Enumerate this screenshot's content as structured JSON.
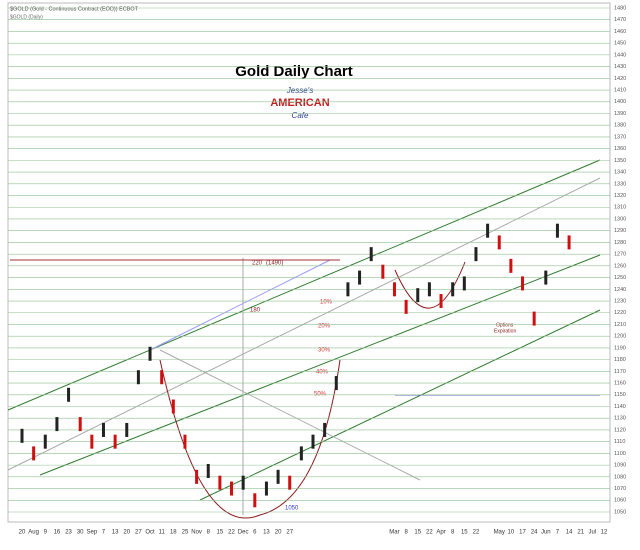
{
  "chart_data": {
    "type": "bars",
    "title": "Gold Daily Chart",
    "subtitle": "$GOLD (Gold - Continuous Contract (EOD)) ECBOT",
    "info": "$GOLD (Daily)",
    "logo": {
      "top": "Jesse's",
      "middle": "AMERICAN",
      "bottom": "Cafe"
    },
    "annotations": [
      "220",
      "(1490)",
      "180",
      "10%",
      "20%",
      "30%",
      "40%",
      "50%",
      "1050",
      "Options",
      "Expiration"
    ],
    "categories": [
      "20",
      "Aug",
      "9",
      "16",
      "23",
      "30",
      "Sep",
      "7",
      "13",
      "20",
      "27",
      "Oct",
      "11",
      "18",
      "25",
      "Nov",
      "8",
      "15",
      "22",
      "Dec",
      "6",
      "13",
      "20",
      "27",
      null,
      null,
      null,
      null,
      null,
      null,
      null,
      null,
      "Mar",
      "8",
      "15",
      "22",
      "Apr",
      "8",
      "15",
      "22",
      null,
      "May",
      "10",
      "17",
      "24",
      "Jun",
      "7",
      "14",
      "21",
      "Jul",
      "12"
    ],
    "values": [
      1115,
      1100,
      1110,
      1125,
      1150,
      1125,
      1110,
      1120,
      1110,
      1120,
      1165,
      1185,
      1165,
      1140,
      1110,
      1080,
      1085,
      1075,
      1070,
      1075,
      1060,
      1070,
      1080,
      1075,
      1100,
      1110,
      1120,
      1160,
      1240,
      1250,
      1270,
      1255,
      1240,
      1225,
      1235,
      1240,
      1230,
      1240,
      1245,
      1270,
      1290,
      1280,
      1260,
      1245,
      1215,
      1250,
      1290,
      1280,
      null,
      null,
      null
    ],
    "ylim": [
      1045,
      1485
    ],
    "yticks": [
      1050,
      1060,
      1070,
      1080,
      1090,
      1100,
      1110,
      1120,
      1130,
      1140,
      1150,
      1160,
      1170,
      1180,
      1190,
      1200,
      1210,
      1220,
      1230,
      1240,
      1250,
      1260,
      1270,
      1280,
      1290,
      1300,
      1310,
      1320,
      1330,
      1340,
      1350,
      1360,
      1370,
      1380,
      1390,
      1400,
      1410,
      1420,
      1430,
      1440,
      1450,
      1460,
      1470,
      1480
    ],
    "grid": true,
    "up_color": "#222222",
    "down_color": "#d01010",
    "grid_color": "#8fbf8f"
  }
}
